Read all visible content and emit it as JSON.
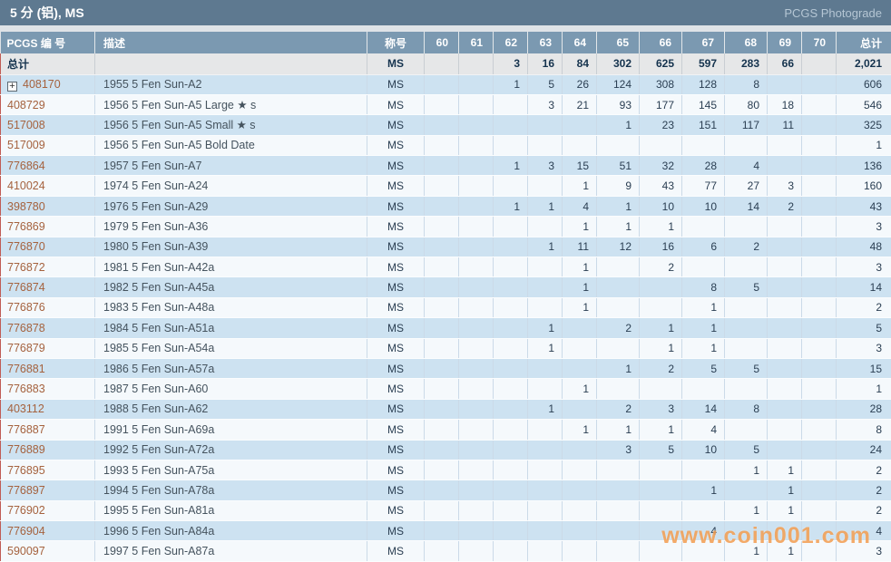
{
  "title_bar": {
    "title": "5 分 (铝), MS",
    "right_label": "PCGS Photograde"
  },
  "columns": [
    "PCGS 编 号",
    "描述",
    "称号",
    "60",
    "61",
    "62",
    "63",
    "64",
    "65",
    "66",
    "67",
    "68",
    "69",
    "70",
    "总计"
  ],
  "icons": {
    "expand": "+"
  },
  "totals_row": {
    "label": "总计",
    "designation": "MS",
    "grades": [
      "",
      "",
      "3",
      "16",
      "84",
      "302",
      "625",
      "597",
      "283",
      "66",
      ""
    ],
    "total": "2,021"
  },
  "rows": [
    {
      "pcgs": "408170",
      "expandable": true,
      "desc": "1955 5 Fen Sun-A2",
      "designation": "MS",
      "grades": [
        "",
        "",
        "1",
        "5",
        "26",
        "124",
        "308",
        "128",
        "8",
        "",
        ""
      ],
      "total": "606"
    },
    {
      "pcgs": "408729",
      "expandable": false,
      "desc": "1956 5 Fen Sun-A5 Large ★ s",
      "designation": "MS",
      "grades": [
        "",
        "",
        "",
        "3",
        "21",
        "93",
        "177",
        "145",
        "80",
        "18",
        ""
      ],
      "total": "546"
    },
    {
      "pcgs": "517008",
      "expandable": false,
      "desc": "1956 5 Fen Sun-A5 Small ★ s",
      "designation": "MS",
      "grades": [
        "",
        "",
        "",
        "",
        "",
        "1",
        "23",
        "151",
        "117",
        "11",
        ""
      ],
      "total": "325"
    },
    {
      "pcgs": "517009",
      "expandable": false,
      "desc": "1956 5 Fen Sun-A5 Bold Date",
      "designation": "MS",
      "grades": [
        "",
        "",
        "",
        "",
        "",
        "",
        "",
        "",
        "",
        "",
        ""
      ],
      "total": "1"
    },
    {
      "pcgs": "776864",
      "expandable": false,
      "desc": "1957 5 Fen Sun-A7",
      "designation": "MS",
      "grades": [
        "",
        "",
        "1",
        "3",
        "15",
        "51",
        "32",
        "28",
        "4",
        "",
        ""
      ],
      "total": "136"
    },
    {
      "pcgs": "410024",
      "expandable": false,
      "desc": "1974 5 Fen Sun-A24",
      "designation": "MS",
      "grades": [
        "",
        "",
        "",
        "",
        "1",
        "9",
        "43",
        "77",
        "27",
        "3",
        ""
      ],
      "total": "160"
    },
    {
      "pcgs": "398780",
      "expandable": false,
      "desc": "1976 5 Fen Sun-A29",
      "designation": "MS",
      "grades": [
        "",
        "",
        "1",
        "1",
        "4",
        "1",
        "10",
        "10",
        "14",
        "2",
        ""
      ],
      "total": "43"
    },
    {
      "pcgs": "776869",
      "expandable": false,
      "desc": "1979 5 Fen Sun-A36",
      "designation": "MS",
      "grades": [
        "",
        "",
        "",
        "",
        "1",
        "1",
        "1",
        "",
        "",
        "",
        ""
      ],
      "total": "3"
    },
    {
      "pcgs": "776870",
      "expandable": false,
      "desc": "1980 5 Fen Sun-A39",
      "designation": "MS",
      "grades": [
        "",
        "",
        "",
        "1",
        "11",
        "12",
        "16",
        "6",
        "2",
        "",
        ""
      ],
      "total": "48"
    },
    {
      "pcgs": "776872",
      "expandable": false,
      "desc": "1981 5 Fen Sun-A42a",
      "designation": "MS",
      "grades": [
        "",
        "",
        "",
        "",
        "1",
        "",
        "2",
        "",
        "",
        "",
        ""
      ],
      "total": "3"
    },
    {
      "pcgs": "776874",
      "expandable": false,
      "desc": "1982 5 Fen Sun-A45a",
      "designation": "MS",
      "grades": [
        "",
        "",
        "",
        "",
        "1",
        "",
        "",
        "8",
        "5",
        "",
        ""
      ],
      "total": "14"
    },
    {
      "pcgs": "776876",
      "expandable": false,
      "desc": "1983 5 Fen Sun-A48a",
      "designation": "MS",
      "grades": [
        "",
        "",
        "",
        "",
        "1",
        "",
        "",
        "1",
        "",
        "",
        ""
      ],
      "total": "2"
    },
    {
      "pcgs": "776878",
      "expandable": false,
      "desc": "1984 5 Fen Sun-A51a",
      "designation": "MS",
      "grades": [
        "",
        "",
        "",
        "1",
        "",
        "2",
        "1",
        "1",
        "",
        "",
        ""
      ],
      "total": "5"
    },
    {
      "pcgs": "776879",
      "expandable": false,
      "desc": "1985 5 Fen Sun-A54a",
      "designation": "MS",
      "grades": [
        "",
        "",
        "",
        "1",
        "",
        "",
        "1",
        "1",
        "",
        "",
        ""
      ],
      "total": "3"
    },
    {
      "pcgs": "776881",
      "expandable": false,
      "desc": "1986 5 Fen Sun-A57a",
      "designation": "MS",
      "grades": [
        "",
        "",
        "",
        "",
        "",
        "1",
        "2",
        "5",
        "5",
        "",
        ""
      ],
      "total": "15"
    },
    {
      "pcgs": "776883",
      "expandable": false,
      "desc": "1987 5 Fen Sun-A60",
      "designation": "MS",
      "grades": [
        "",
        "",
        "",
        "",
        "1",
        "",
        "",
        "",
        "",
        "",
        ""
      ],
      "total": "1"
    },
    {
      "pcgs": "403112",
      "expandable": false,
      "desc": "1988 5 Fen Sun-A62",
      "designation": "MS",
      "grades": [
        "",
        "",
        "",
        "1",
        "",
        "2",
        "3",
        "14",
        "8",
        "",
        ""
      ],
      "total": "28"
    },
    {
      "pcgs": "776887",
      "expandable": false,
      "desc": "1991 5 Fen Sun-A69a",
      "designation": "MS",
      "grades": [
        "",
        "",
        "",
        "",
        "1",
        "1",
        "1",
        "4",
        "",
        "",
        ""
      ],
      "total": "8"
    },
    {
      "pcgs": "776889",
      "expandable": false,
      "desc": "1992 5 Fen Sun-A72a",
      "designation": "MS",
      "grades": [
        "",
        "",
        "",
        "",
        "",
        "3",
        "5",
        "10",
        "5",
        "",
        ""
      ],
      "total": "24"
    },
    {
      "pcgs": "776895",
      "expandable": false,
      "desc": "1993 5 Fen Sun-A75a",
      "designation": "MS",
      "grades": [
        "",
        "",
        "",
        "",
        "",
        "",
        "",
        "",
        "1",
        "1",
        ""
      ],
      "total": "2"
    },
    {
      "pcgs": "776897",
      "expandable": false,
      "desc": "1994 5 Fen Sun-A78a",
      "designation": "MS",
      "grades": [
        "",
        "",
        "",
        "",
        "",
        "",
        "",
        "1",
        "",
        "1",
        ""
      ],
      "total": "2"
    },
    {
      "pcgs": "776902",
      "expandable": false,
      "desc": "1995 5 Fen Sun-A81a",
      "designation": "MS",
      "grades": [
        "",
        "",
        "",
        "",
        "",
        "",
        "",
        "",
        "1",
        "1",
        ""
      ],
      "total": "2"
    },
    {
      "pcgs": "776904",
      "expandable": false,
      "desc": "1996 5 Fen Sun-A84a",
      "designation": "MS",
      "grades": [
        "",
        "",
        "",
        "",
        "",
        "",
        "",
        "4",
        "",
        "",
        ""
      ],
      "total": "4"
    },
    {
      "pcgs": "590097",
      "expandable": false,
      "desc": "1997 5 Fen Sun-A87a",
      "designation": "MS",
      "grades": [
        "",
        "",
        "",
        "",
        "",
        "",
        "",
        "",
        "1",
        "1",
        ""
      ],
      "total": "3"
    }
  ],
  "watermark": "www.coin001.com",
  "colors": {
    "title_bar": "#5e7990",
    "header_row": "#7b99b1",
    "row_blue": "#cde2f1",
    "row_light": "#f5f9fc",
    "totals_bg": "#e6e7e8",
    "pcgs_link": "#a5623e",
    "left_border": "#c05c55",
    "watermark": "#f19848"
  }
}
